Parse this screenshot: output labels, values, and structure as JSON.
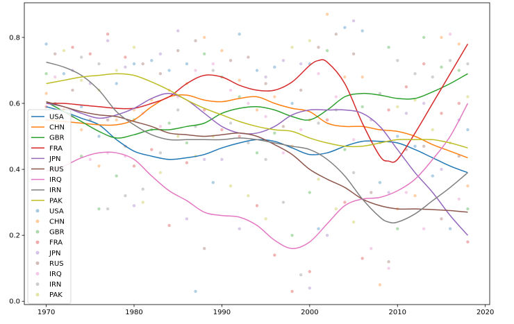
{
  "chart_data": {
    "type": "line",
    "title": "",
    "xlabel": "",
    "ylabel": "",
    "xlim": [
      1967.5,
      2020.5
    ],
    "ylim": [
      -0.01,
      0.905
    ],
    "xticks": [
      1970,
      1980,
      1990,
      2000,
      2010,
      2020
    ],
    "yticks": [
      0.0,
      0.2,
      0.4,
      0.6,
      0.8
    ],
    "legend_position": "center-left",
    "grid": false,
    "series": [
      {
        "name": "USA",
        "color": "#1f77b4",
        "x": [
          1970,
          1972,
          1974,
          1976,
          1978,
          1980,
          1982,
          1984,
          1986,
          1988,
          1990,
          1992,
          1994,
          1996,
          1998,
          2000,
          2002,
          2004,
          2006,
          2008,
          2010,
          2012,
          2014,
          2016,
          2018
        ],
        "y": [
          0.59,
          0.575,
          0.555,
          0.535,
          0.49,
          0.455,
          0.44,
          0.43,
          0.435,
          0.445,
          0.465,
          0.48,
          0.49,
          0.485,
          0.465,
          0.445,
          0.45,
          0.47,
          0.485,
          0.485,
          0.48,
          0.46,
          0.435,
          0.41,
          0.39
        ]
      },
      {
        "name": "CHN",
        "color": "#ff7f0e",
        "x": [
          1970,
          1972,
          1974,
          1976,
          1978,
          1980,
          1982,
          1984,
          1986,
          1988,
          1990,
          1992,
          1994,
          1996,
          1998,
          2000,
          2002,
          2004,
          2006,
          2008,
          2010,
          2012,
          2014,
          2016,
          2018
        ],
        "y": [
          0.55,
          0.545,
          0.54,
          0.535,
          0.535,
          0.55,
          0.59,
          0.62,
          0.625,
          0.61,
          0.605,
          0.615,
          0.62,
          0.6,
          0.585,
          0.575,
          0.54,
          0.53,
          0.53,
          0.52,
          0.515,
          0.5,
          0.475,
          0.455,
          0.435
        ]
      },
      {
        "name": "GBR",
        "color": "#2ca02c",
        "x": [
          1970,
          1972,
          1974,
          1976,
          1978,
          1980,
          1982,
          1984,
          1986,
          1988,
          1990,
          1992,
          1994,
          1996,
          1998,
          2000,
          2002,
          2004,
          2006,
          2008,
          2010,
          2012,
          2014,
          2016,
          2018
        ],
        "y": [
          0.605,
          0.575,
          0.545,
          0.515,
          0.495,
          0.505,
          0.52,
          0.52,
          0.53,
          0.54,
          0.57,
          0.585,
          0.59,
          0.58,
          0.56,
          0.55,
          0.58,
          0.62,
          0.63,
          0.625,
          0.615,
          0.615,
          0.635,
          0.66,
          0.69
        ]
      },
      {
        "name": "FRA",
        "color": "#d62728",
        "x": [
          1970,
          1972,
          1974,
          1976,
          1978,
          1980,
          1982,
          1984,
          1986,
          1988,
          1990,
          1992,
          1994,
          1996,
          1998,
          2000,
          2001,
          2002,
          2004,
          2006,
          2008,
          2009,
          2010,
          2012,
          2014,
          2016,
          2018
        ],
        "y": [
          0.6,
          0.6,
          0.595,
          0.59,
          0.585,
          0.585,
          0.6,
          0.62,
          0.66,
          0.685,
          0.68,
          0.655,
          0.64,
          0.64,
          0.665,
          0.715,
          0.73,
          0.725,
          0.66,
          0.54,
          0.44,
          0.425,
          0.43,
          0.51,
          0.6,
          0.69,
          0.78
        ]
      },
      {
        "name": "JPN",
        "color": "#9467bd",
        "x": [
          1970,
          1972,
          1974,
          1976,
          1978,
          1980,
          1982,
          1984,
          1986,
          1988,
          1990,
          1992,
          1994,
          1996,
          1998,
          2000,
          2002,
          2004,
          2006,
          2008,
          2010,
          2012,
          2014,
          2016,
          2018
        ],
        "y": [
          0.6,
          0.59,
          0.57,
          0.555,
          0.565,
          0.585,
          0.615,
          0.63,
          0.61,
          0.57,
          0.53,
          0.51,
          0.51,
          0.53,
          0.565,
          0.58,
          0.58,
          0.58,
          0.57,
          0.53,
          0.46,
          0.39,
          0.33,
          0.26,
          0.2
        ]
      },
      {
        "name": "RUS",
        "color": "#8c564b",
        "x": [
          1970,
          1972,
          1974,
          1976,
          1978,
          1980,
          1982,
          1984,
          1986,
          1988,
          1990,
          1992,
          1994,
          1996,
          1998,
          2000,
          2002,
          2004,
          2006,
          2008,
          2010,
          2012,
          2014,
          2016,
          2018
        ],
        "y": [
          0.605,
          0.59,
          0.575,
          0.565,
          0.56,
          0.545,
          0.53,
          0.51,
          0.505,
          0.5,
          0.505,
          0.51,
          0.5,
          0.475,
          0.445,
          0.4,
          0.37,
          0.345,
          0.31,
          0.29,
          0.28,
          0.28,
          0.278,
          0.275,
          0.27
        ]
      },
      {
        "name": "IRQ",
        "color": "#e377c2",
        "x": [
          1970,
          1972,
          1974,
          1976,
          1978,
          1980,
          1982,
          1984,
          1986,
          1988,
          1990,
          1992,
          1994,
          1996,
          1998,
          2000,
          2002,
          2004,
          2006,
          2008,
          2010,
          2012,
          2014,
          2016,
          2018
        ],
        "y": [
          0.395,
          0.41,
          0.435,
          0.45,
          0.45,
          0.43,
          0.38,
          0.335,
          0.305,
          0.27,
          0.26,
          0.255,
          0.23,
          0.185,
          0.16,
          0.18,
          0.235,
          0.29,
          0.31,
          0.315,
          0.335,
          0.37,
          0.43,
          0.5,
          0.6
        ]
      },
      {
        "name": "IRN",
        "color": "#7f7f7f",
        "x": [
          1970,
          1972,
          1974,
          1976,
          1978,
          1980,
          1982,
          1984,
          1986,
          1988,
          1990,
          1992,
          1994,
          1996,
          1998,
          2000,
          2002,
          2004,
          2006,
          2008,
          2009,
          2010,
          2012,
          2014,
          2016,
          2018
        ],
        "y": [
          0.725,
          0.71,
          0.685,
          0.64,
          0.575,
          0.535,
          0.505,
          0.49,
          0.49,
          0.49,
          0.49,
          0.495,
          0.49,
          0.48,
          0.47,
          0.46,
          0.43,
          0.38,
          0.31,
          0.255,
          0.24,
          0.24,
          0.265,
          0.305,
          0.345,
          0.39
        ]
      },
      {
        "name": "PAK",
        "color": "#bcbd22",
        "x": [
          1970,
          1972,
          1974,
          1976,
          1978,
          1980,
          1982,
          1984,
          1986,
          1988,
          1990,
          1992,
          1994,
          1996,
          1998,
          2000,
          2002,
          2004,
          2006,
          2008,
          2010,
          2012,
          2014,
          2016,
          2018
        ],
        "y": [
          0.66,
          0.67,
          0.68,
          0.685,
          0.69,
          0.685,
          0.665,
          0.64,
          0.61,
          0.585,
          0.565,
          0.545,
          0.53,
          0.52,
          0.515,
          0.495,
          0.48,
          0.47,
          0.47,
          0.48,
          0.49,
          0.49,
          0.49,
          0.48,
          0.465
        ]
      }
    ],
    "scatter_points": [
      [
        1970,
        0.78
      ],
      [
        1970,
        0.63
      ],
      [
        1970,
        0.69
      ],
      [
        1970,
        0.59
      ],
      [
        1970,
        0.55
      ],
      [
        1971,
        0.75
      ],
      [
        1971,
        0.68
      ],
      [
        1971,
        0.6
      ],
      [
        1972,
        0.76
      ],
      [
        1972,
        0.69
      ],
      [
        1972,
        0.58
      ],
      [
        1972,
        0.52
      ],
      [
        1973,
        0.77
      ],
      [
        1973,
        0.7
      ],
      [
        1973,
        0.64
      ],
      [
        1973,
        0.56
      ],
      [
        1974,
        0.74
      ],
      [
        1974,
        0.67
      ],
      [
        1974,
        0.59
      ],
      [
        1974,
        0.52
      ],
      [
        1974,
        0.44
      ],
      [
        1975,
        0.75
      ],
      [
        1975,
        0.66
      ],
      [
        1975,
        0.55
      ],
      [
        1975,
        0.43
      ],
      [
        1976,
        0.72
      ],
      [
        1976,
        0.64
      ],
      [
        1976,
        0.5
      ],
      [
        1976,
        0.41
      ],
      [
        1976,
        0.28
      ],
      [
        1977,
        0.81
      ],
      [
        1977,
        0.79
      ],
      [
        1977,
        0.55
      ],
      [
        1977,
        0.45
      ],
      [
        1977,
        0.28
      ],
      [
        1978,
        0.7
      ],
      [
        1978,
        0.66
      ],
      [
        1978,
        0.55
      ],
      [
        1978,
        0.38
      ],
      [
        1979,
        0.74
      ],
      [
        1979,
        0.71
      ],
      [
        1979,
        0.47
      ],
      [
        1979,
        0.44
      ],
      [
        1979,
        0.32
      ],
      [
        1980,
        0.77
      ],
      [
        1980,
        0.72
      ],
      [
        1980,
        0.58
      ],
      [
        1980,
        0.55
      ],
      [
        1980,
        0.41
      ],
      [
        1980,
        0.29
      ],
      [
        1981,
        0.72
      ],
      [
        1981,
        0.57
      ],
      [
        1981,
        0.34
      ],
      [
        1981,
        0.3
      ],
      [
        1982,
        0.73
      ],
      [
        1982,
        0.61
      ],
      [
        1982,
        0.52
      ],
      [
        1982,
        0.46
      ],
      [
        1983,
        0.75
      ],
      [
        1983,
        0.69
      ],
      [
        1983,
        0.53
      ],
      [
        1983,
        0.45
      ],
      [
        1983,
        0.39
      ],
      [
        1984,
        0.7
      ],
      [
        1984,
        0.64
      ],
      [
        1984,
        0.54
      ],
      [
        1984,
        0.23
      ],
      [
        1985,
        0.82
      ],
      [
        1985,
        0.76
      ],
      [
        1985,
        0.62
      ],
      [
        1985,
        0.58
      ],
      [
        1985,
        0.5
      ],
      [
        1986,
        0.72
      ],
      [
        1986,
        0.66
      ],
      [
        1986,
        0.48
      ],
      [
        1986,
        0.42
      ],
      [
        1986,
        0.25
      ],
      [
        1987,
        0.79
      ],
      [
        1987,
        0.7
      ],
      [
        1987,
        0.53
      ],
      [
        1987,
        0.44
      ],
      [
        1987,
        0.03
      ],
      [
        1988,
        0.8
      ],
      [
        1988,
        0.75
      ],
      [
        1988,
        0.58
      ],
      [
        1988,
        0.43
      ],
      [
        1988,
        0.16
      ],
      [
        1989,
        0.72
      ],
      [
        1989,
        0.7
      ],
      [
        1989,
        0.5
      ],
      [
        1989,
        0.36
      ],
      [
        1990,
        0.76
      ],
      [
        1990,
        0.68
      ],
      [
        1990,
        0.52
      ],
      [
        1990,
        0.43
      ],
      [
        1991,
        0.73
      ],
      [
        1991,
        0.64
      ],
      [
        1991,
        0.54
      ],
      [
        1991,
        0.35
      ],
      [
        1992,
        0.81
      ],
      [
        1992,
        0.67
      ],
      [
        1992,
        0.62
      ],
      [
        1992,
        0.5
      ],
      [
        1992,
        0.22
      ],
      [
        1993,
        0.74
      ],
      [
        1993,
        0.6
      ],
      [
        1993,
        0.48
      ],
      [
        1993,
        0.32
      ],
      [
        1994,
        0.7
      ],
      [
        1994,
        0.58
      ],
      [
        1994,
        0.45
      ],
      [
        1994,
        0.29
      ],
      [
        1995,
        0.68
      ],
      [
        1995,
        0.66
      ],
      [
        1995,
        0.56
      ],
      [
        1995,
        0.43
      ],
      [
        1995,
        0.25
      ],
      [
        1996,
        0.71
      ],
      [
        1996,
        0.62
      ],
      [
        1996,
        0.51
      ],
      [
        1996,
        0.14
      ],
      [
        1997,
        0.73
      ],
      [
        1997,
        0.53
      ],
      [
        1997,
        0.45
      ],
      [
        1997,
        0.3
      ],
      [
        1998,
        0.77
      ],
      [
        1998,
        0.6
      ],
      [
        1998,
        0.47
      ],
      [
        1998,
        0.2
      ],
      [
        1998,
        0.03
      ],
      [
        1999,
        0.72
      ],
      [
        1999,
        0.64
      ],
      [
        1999,
        0.52
      ],
      [
        1999,
        0.08
      ],
      [
        2000,
        0.79
      ],
      [
        2000,
        0.72
      ],
      [
        2000,
        0.55
      ],
      [
        2000,
        0.33
      ],
      [
        2000,
        0.09
      ],
      [
        2000,
        0.04
      ],
      [
        2001,
        0.77
      ],
      [
        2001,
        0.69
      ],
      [
        2001,
        0.54
      ],
      [
        2001,
        0.37
      ],
      [
        2001,
        0.22
      ],
      [
        2002,
        0.87
      ],
      [
        2002,
        0.76
      ],
      [
        2002,
        0.55
      ],
      [
        2002,
        0.2
      ],
      [
        2003,
        0.81
      ],
      [
        2003,
        0.62
      ],
      [
        2003,
        0.58
      ],
      [
        2003,
        0.28
      ],
      [
        2004,
        0.83
      ],
      [
        2004,
        0.68
      ],
      [
        2004,
        0.46
      ],
      [
        2004,
        0.3
      ],
      [
        2005,
        0.85
      ],
      [
        2005,
        0.75
      ],
      [
        2005,
        0.49
      ],
      [
        2005,
        0.39
      ],
      [
        2005,
        0.24
      ],
      [
        2006,
        0.82
      ],
      [
        2006,
        0.68
      ],
      [
        2006,
        0.59
      ],
      [
        2006,
        0.13
      ],
      [
        2007,
        0.55
      ],
      [
        2007,
        0.33
      ],
      [
        2007,
        0.16
      ],
      [
        2008,
        0.63
      ],
      [
        2008,
        0.48
      ],
      [
        2008,
        0.36
      ],
      [
        2008,
        0.05
      ],
      [
        2009,
        0.77
      ],
      [
        2009,
        0.58
      ],
      [
        2009,
        0.33
      ],
      [
        2009,
        0.12
      ],
      [
        2009,
        0.1
      ],
      [
        2010,
        0.73
      ],
      [
        2010,
        0.59
      ],
      [
        2010,
        0.5
      ],
      [
        2010,
        0.28
      ],
      [
        2010,
        0.22
      ],
      [
        2011,
        0.65
      ],
      [
        2011,
        0.57
      ],
      [
        2011,
        0.46
      ],
      [
        2011,
        0.33
      ],
      [
        2012,
        0.69
      ],
      [
        2012,
        0.61
      ],
      [
        2012,
        0.47
      ],
      [
        2012,
        0.32
      ],
      [
        2013,
        0.8
      ],
      [
        2013,
        0.72
      ],
      [
        2013,
        0.6
      ],
      [
        2013,
        0.47
      ],
      [
        2013,
        0.22
      ],
      [
        2014,
        0.68
      ],
      [
        2014,
        0.52
      ],
      [
        2014,
        0.38
      ],
      [
        2015,
        0.8
      ],
      [
        2015,
        0.71
      ],
      [
        2015,
        0.57
      ],
      [
        2015,
        0.4
      ],
      [
        2015,
        0.25
      ],
      [
        2016,
        0.81
      ],
      [
        2016,
        0.73
      ],
      [
        2016,
        0.48
      ],
      [
        2016,
        0.22
      ],
      [
        2017,
        0.78
      ],
      [
        2017,
        0.7
      ],
      [
        2017,
        0.6
      ],
      [
        2017,
        0.55
      ],
      [
        2017,
        0.44
      ],
      [
        2017,
        0.31
      ],
      [
        2018,
        0.72
      ],
      [
        2018,
        0.62
      ],
      [
        2018,
        0.52
      ],
      [
        2018,
        0.35
      ],
      [
        2018,
        0.28
      ],
      [
        2018,
        0.18
      ]
    ]
  }
}
